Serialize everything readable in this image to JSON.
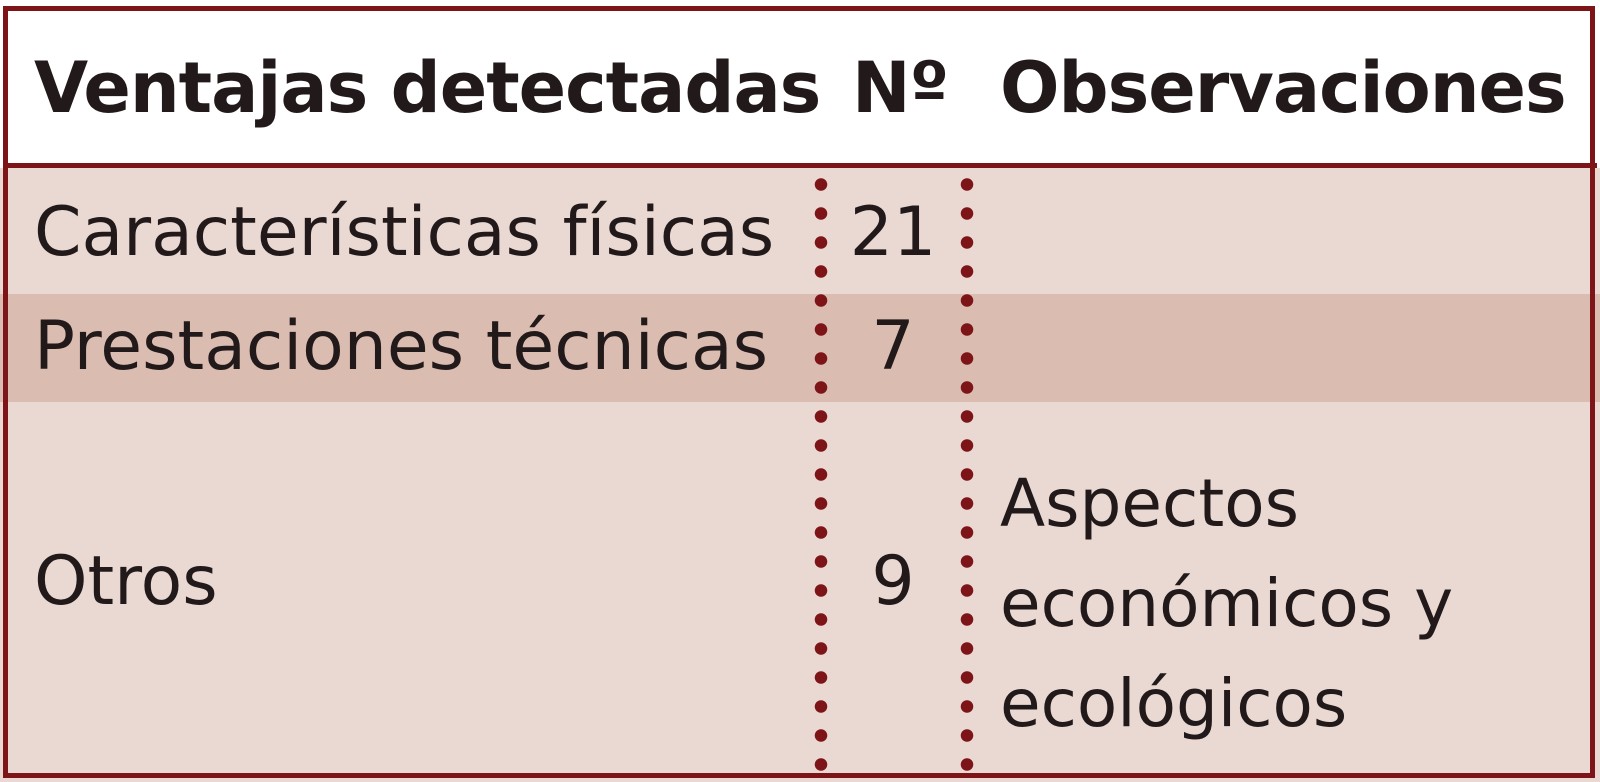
{
  "table": {
    "headers": {
      "advantages": "Ventajas detectadas",
      "number": "Nº",
      "observations": "Observaciones"
    },
    "rows": [
      {
        "advantage": "Características físicas",
        "number": "21",
        "observations": ""
      },
      {
        "advantage": "Prestaciones técnicas",
        "number": "7",
        "observations": ""
      },
      {
        "advantage": "Otros",
        "number": "9",
        "observations": "Aspectos económicos y ecológicos"
      }
    ]
  },
  "colors": {
    "border": "#7d1518",
    "row_light": "#ead9d3",
    "row_dark": "#dbbcb1",
    "text": "#22191a",
    "header_bg": "#ffffff"
  }
}
